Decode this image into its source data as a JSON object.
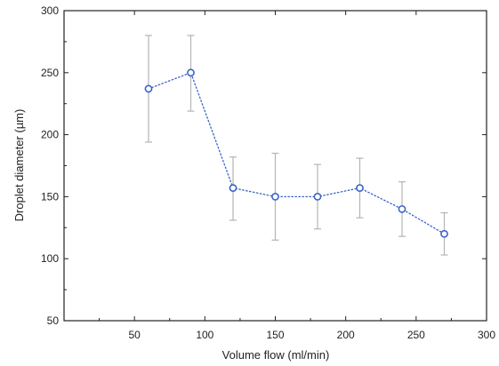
{
  "chart_data": {
    "type": "scatter",
    "title": "",
    "xlabel": "Volume flow (ml/min)",
    "ylabel": "Droplet diameter (µm)",
    "xlim": [
      0,
      300
    ],
    "ylim": [
      50,
      300
    ],
    "xticks": [
      50,
      100,
      150,
      200,
      250,
      300
    ],
    "yticks": [
      50,
      100,
      150,
      200,
      250,
      300
    ],
    "grid": false,
    "legend": "none",
    "line_style": "dotted",
    "series": [
      {
        "x": [
          60,
          90,
          120,
          150,
          180,
          210,
          240,
          270
        ],
        "y": [
          237,
          250,
          157,
          150,
          150,
          157,
          140,
          120
        ],
        "err_low": [
          194,
          219,
          131,
          115,
          124,
          133,
          118,
          103
        ],
        "err_high": [
          280,
          280,
          182,
          185,
          176,
          181,
          162,
          137
        ]
      }
    ],
    "colors": {
      "line": "#3a64c8",
      "marker": "#3a64c8",
      "errorbar": "#b4b4b4",
      "axis": "#222222"
    }
  }
}
